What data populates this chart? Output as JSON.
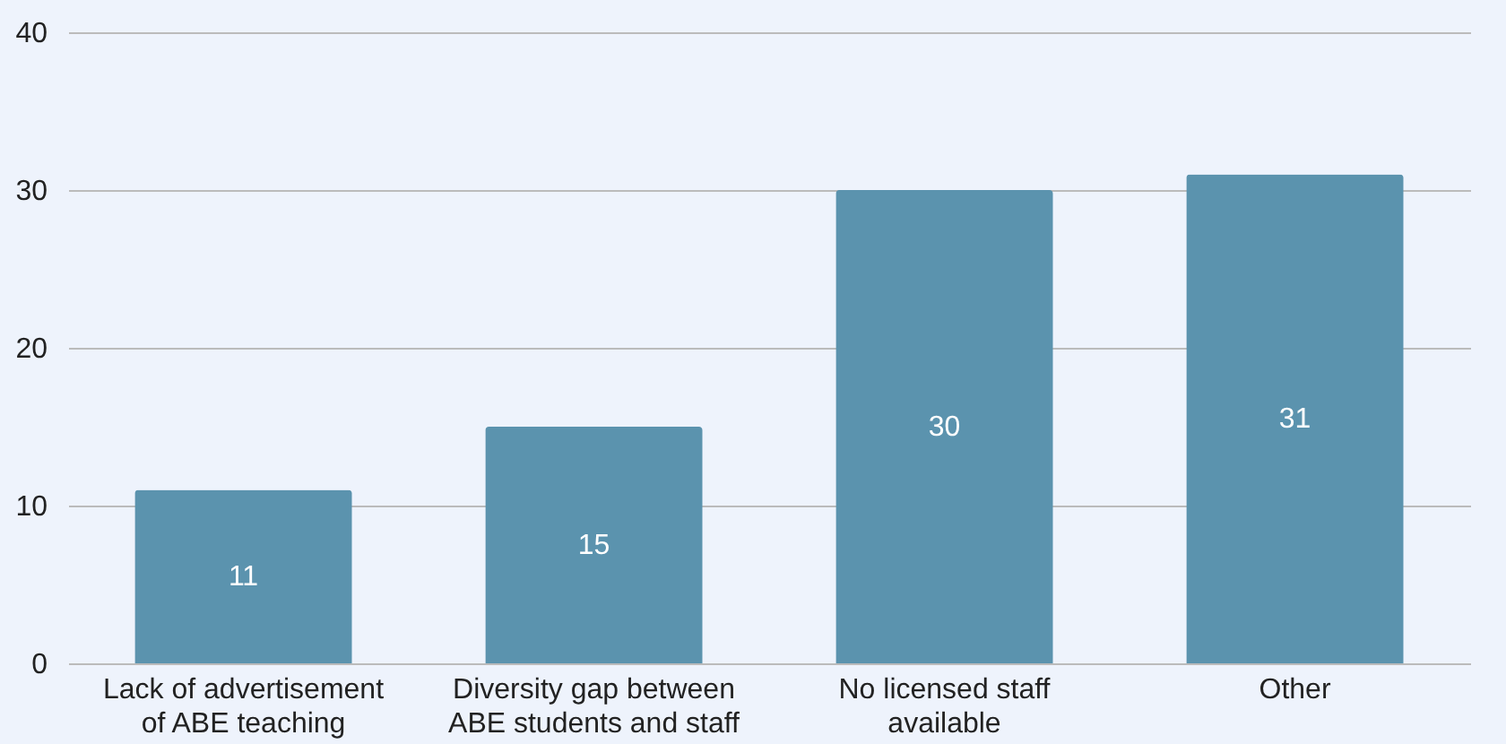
{
  "chart_data": {
    "type": "bar",
    "categories": [
      "Lack of advertisement of ABE teaching",
      "Diversity gap between ABE students and staff",
      "No licensed staff available",
      "Other"
    ],
    "values": [
      11,
      15,
      30,
      31
    ],
    "color": "#5b93ae",
    "ylim": [
      0,
      40
    ],
    "yticks": [
      0,
      10,
      20,
      30,
      40
    ],
    "grid": "y",
    "data_labels": true
  }
}
